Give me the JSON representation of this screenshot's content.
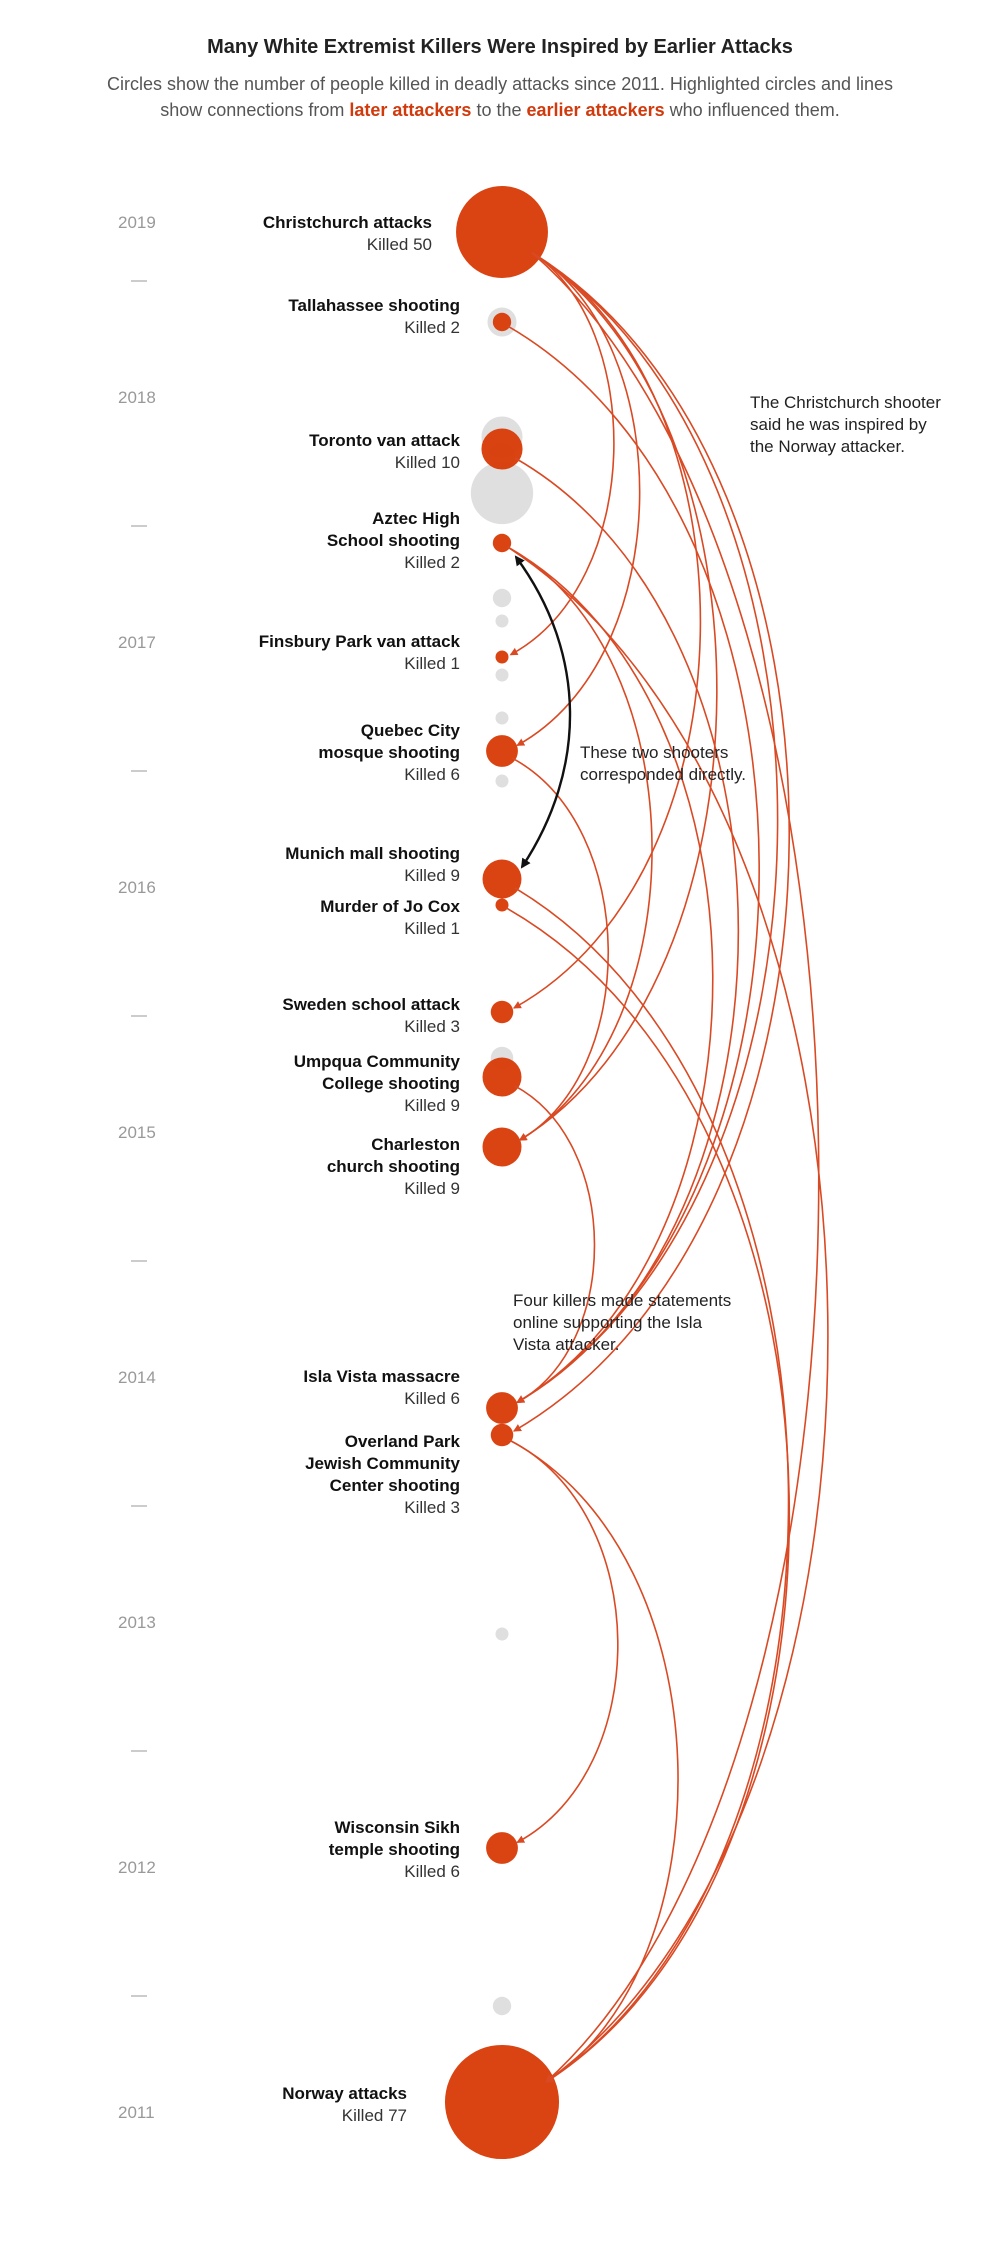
{
  "title": "Many White Extremist Killers Were Inspired by Earlier Attacks",
  "subtitle": {
    "part1": "Circles show the number of people killed in deadly attacks since 2011. Highlighted circles and lines show connections from ",
    "later": "later attackers",
    "part2": " to the ",
    "earlier": "earlier attackers",
    "part3": " who influenced them."
  },
  "colors": {
    "accent": "#d83a05",
    "line": "#d94a24",
    "gray": "#d4d4d4",
    "black": "#111111"
  },
  "years": [
    "2019",
    "2018",
    "2017",
    "2016",
    "2015",
    "2014",
    "2013",
    "2012",
    "2011"
  ],
  "attacks": [
    {
      "id": "christchurch",
      "name": [
        "Christchurch attacks"
      ],
      "killed": "Killed 50",
      "count": 50
    },
    {
      "id": "tallahassee",
      "name": [
        "Tallahassee shooting"
      ],
      "killed": "Killed 2",
      "count": 2
    },
    {
      "id": "toronto",
      "name": [
        "Toronto van attack"
      ],
      "killed": "Killed 10",
      "count": 10
    },
    {
      "id": "aztec",
      "name": [
        "Aztec High",
        "School shooting"
      ],
      "killed": "Killed 2",
      "count": 2
    },
    {
      "id": "finsbury",
      "name": [
        "Finsbury Park van attack"
      ],
      "killed": "Killed 1",
      "count": 1
    },
    {
      "id": "quebec",
      "name": [
        "Quebec City",
        "mosque shooting"
      ],
      "killed": "Killed 6",
      "count": 6
    },
    {
      "id": "munich",
      "name": [
        "Munich mall shooting"
      ],
      "killed": "Killed 9",
      "count": 9
    },
    {
      "id": "jocox",
      "name": [
        "Murder of Jo Cox"
      ],
      "killed": "Killed 1",
      "count": 1
    },
    {
      "id": "sweden",
      "name": [
        "Sweden school attack"
      ],
      "killed": "Killed 3",
      "count": 3
    },
    {
      "id": "umpqua",
      "name": [
        "Umpqua Community",
        "College shooting"
      ],
      "killed": "Killed 9",
      "count": 9
    },
    {
      "id": "charleston",
      "name": [
        "Charleston",
        "church shooting"
      ],
      "killed": "Killed 9",
      "count": 9
    },
    {
      "id": "islavista",
      "name": [
        "Isla Vista massacre"
      ],
      "killed": "Killed 6",
      "count": 6
    },
    {
      "id": "overland",
      "name": [
        "Overland Park",
        "Jewish Community",
        "Center shooting"
      ],
      "killed": "Killed 3",
      "count": 3
    },
    {
      "id": "wisconsin",
      "name": [
        "Wisconsin Sikh",
        "temple shooting"
      ],
      "killed": "Killed 6",
      "count": 6
    },
    {
      "id": "norway",
      "name": [
        "Norway attacks"
      ],
      "killed": "Killed 77",
      "count": 77
    }
  ],
  "connections": [
    {
      "from": "christchurch",
      "to": "finsbury"
    },
    {
      "from": "christchurch",
      "to": "quebec"
    },
    {
      "from": "christchurch",
      "to": "sweden"
    },
    {
      "from": "christchurch",
      "to": "charleston"
    },
    {
      "from": "christchurch",
      "to": "islavista"
    },
    {
      "from": "christchurch",
      "to": "overland"
    },
    {
      "from": "christchurch",
      "to": "norway"
    },
    {
      "from": "tallahassee",
      "to": "islavista"
    },
    {
      "from": "toronto",
      "to": "islavista"
    },
    {
      "from": "aztec",
      "to": "charleston"
    },
    {
      "from": "aztec",
      "to": "islavista"
    },
    {
      "from": "aztec",
      "to": "norway"
    },
    {
      "from": "quebec",
      "to": "charleston"
    },
    {
      "from": "munich",
      "to": "norway"
    },
    {
      "from": "jocox",
      "to": "norway"
    },
    {
      "from": "umpqua",
      "to": "islavista"
    },
    {
      "from": "overland",
      "to": "wisconsin"
    },
    {
      "from": "overland",
      "to": "norway"
    }
  ],
  "direct_connection": {
    "a": "aztec",
    "b": "munich"
  },
  "notes": {
    "norway": [
      "The Christchurch shooter",
      "said he was inspired by",
      "the Norway attacker."
    ],
    "direct": [
      "These two shooters",
      "corresponded directly."
    ],
    "islavista": [
      "Four killers made statements",
      "online supporting the Isla",
      "Vista attacker."
    ]
  }
}
